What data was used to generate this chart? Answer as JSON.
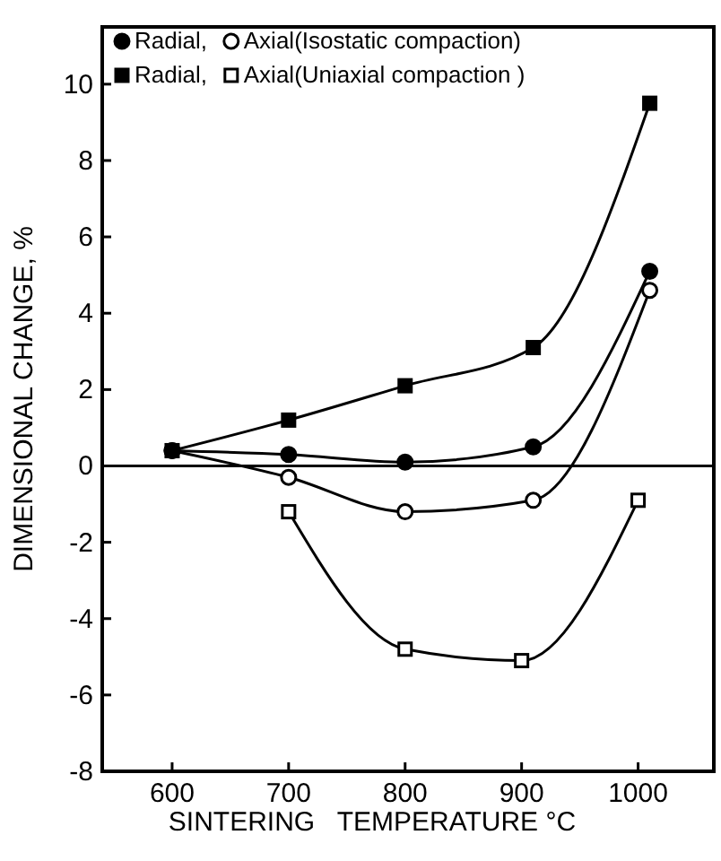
{
  "chart_data": {
    "type": "line",
    "xlabel": "SINTERING   TEMPERATURE °C",
    "ylabel": "DIMENSIONAL CHANGE, %",
    "xlim": [
      540,
      1065
    ],
    "ylim": [
      -8,
      11.5
    ],
    "xticks": [
      600,
      700,
      800,
      900,
      1000
    ],
    "yticks": [
      -8,
      -6,
      -4,
      -2,
      0,
      2,
      4,
      6,
      8,
      10
    ],
    "grid": false,
    "legend": "top left",
    "line_style": "solid",
    "ref_lines": [
      {
        "axis": "y",
        "value": 0,
        "color": "#000000"
      }
    ],
    "series": [
      {
        "name": "Radial,",
        "color": "#000000",
        "marker": "circle",
        "x": [
          600,
          700,
          800,
          910,
          1010
        ],
        "values": [
          0.4,
          0.3,
          0.1,
          0.5,
          5.1
        ]
      },
      {
        "name": "Axial(Isostatic compaction)",
        "color": "#000000",
        "marker": "circle",
        "x": [
          600,
          700,
          800,
          910,
          1010
        ],
        "values": [
          0.4,
          -0.3,
          -1.2,
          -0.9,
          4.6
        ]
      },
      {
        "name": "Radial,",
        "color": "#000000",
        "marker": "square",
        "x": [
          600,
          700,
          800,
          910,
          1010
        ],
        "values": [
          0.4,
          1.2,
          2.1,
          3.1,
          9.5
        ]
      },
      {
        "name": "Axial(Uniaxial compaction )",
        "color": "#000000",
        "marker": "square",
        "x": [
          700,
          800,
          900,
          1000
        ],
        "values": [
          -1.2,
          -4.8,
          -5.1,
          -0.9
        ]
      }
    ]
  }
}
